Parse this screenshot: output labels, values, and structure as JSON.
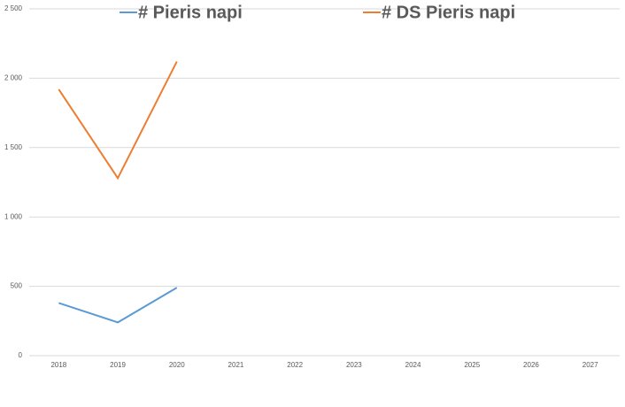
{
  "chart_data": {
    "type": "line",
    "categories": [
      "2018",
      "2019",
      "2020",
      "2021",
      "2022",
      "2023",
      "2024",
      "2025",
      "2026",
      "2027"
    ],
    "series": [
      {
        "name": "# Pieris napi",
        "color": "#5b9bd5",
        "values": [
          380,
          240,
          490,
          null,
          null,
          null,
          null,
          null,
          null,
          null
        ]
      },
      {
        "name": "# DS Pieris napi",
        "color": "#ed7d31",
        "values": [
          1920,
          1280,
          2120,
          null,
          null,
          null,
          null,
          null,
          null,
          null
        ]
      }
    ],
    "ylim": [
      0,
      2500
    ],
    "yticks": [
      0,
      500,
      {
        "value": 1000,
        "label": "1 000"
      },
      {
        "value": 1500,
        "label": "1 500"
      },
      {
        "value": 2000,
        "label": "2 000"
      },
      {
        "value": 2500,
        "label": "2 500"
      }
    ],
    "grid": true,
    "legend": "top"
  }
}
